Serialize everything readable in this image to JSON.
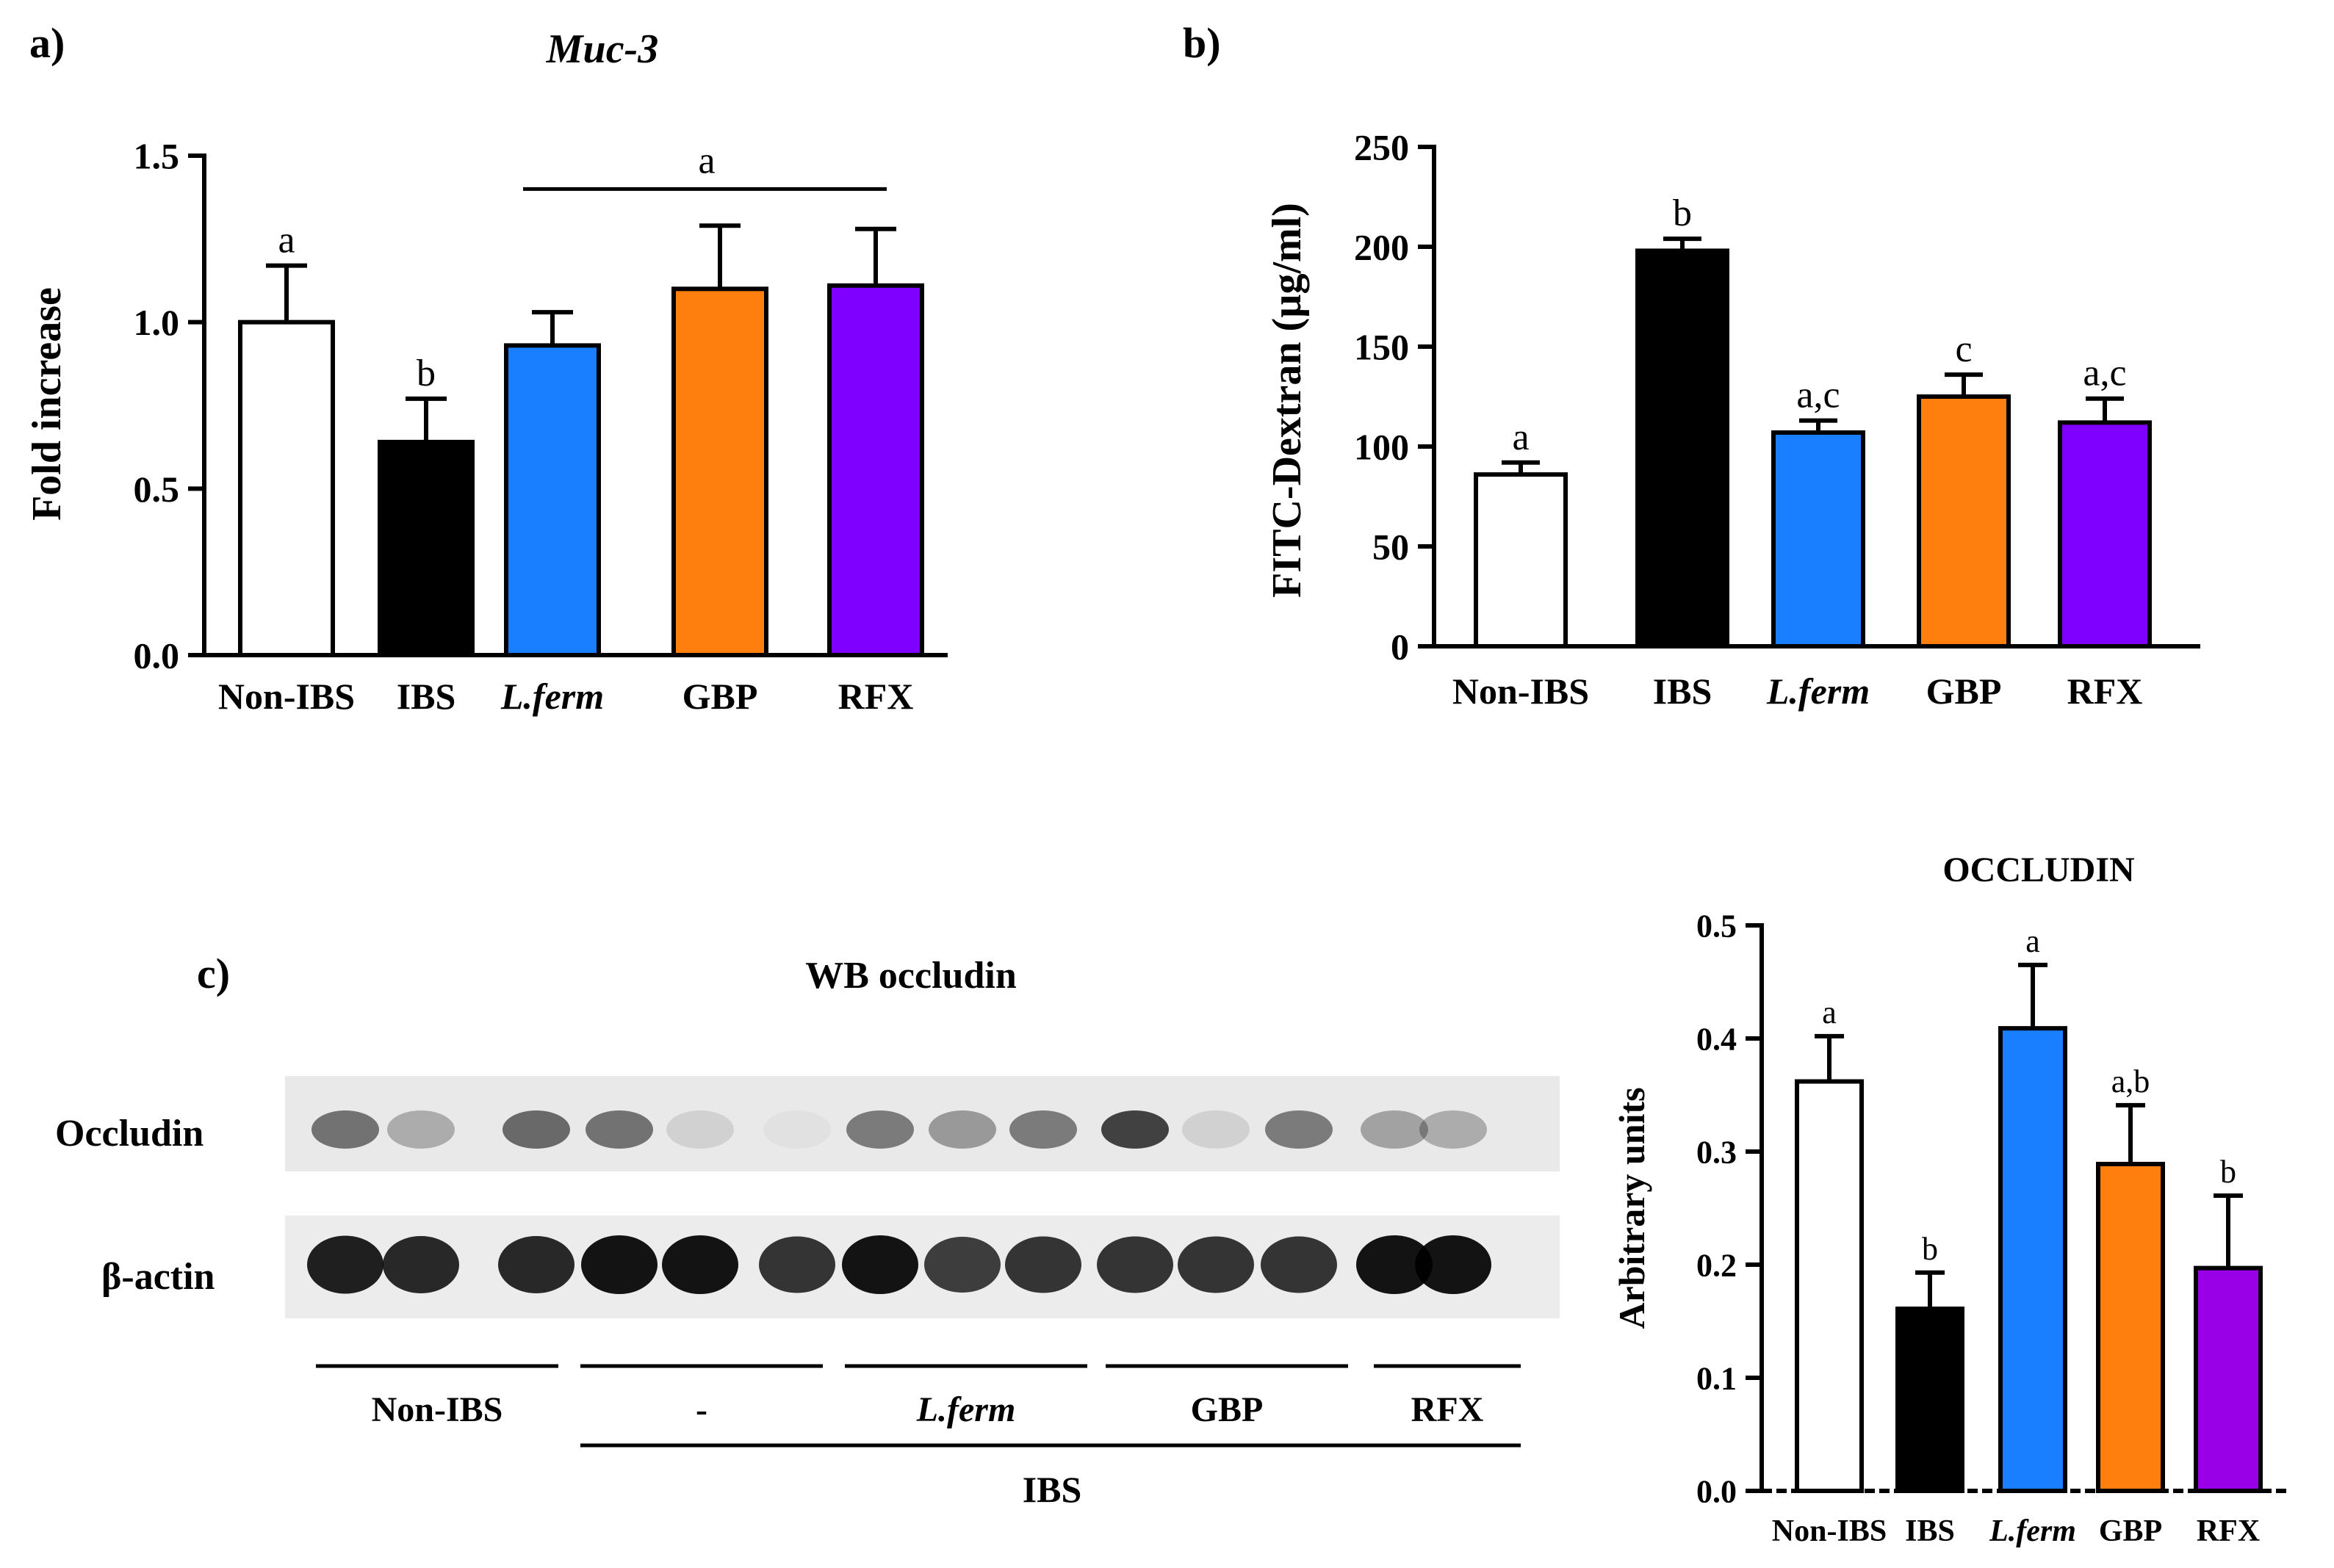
{
  "colors": {
    "non_ibs": "#ffffff",
    "ibs": "#000000",
    "lferm": "#1a7fff",
    "gbp": "#ff7f0e",
    "rfx": "#8000ff",
    "rfx_c": "#9a00e8"
  },
  "panel_labels": {
    "a": "a)",
    "b": "b)",
    "c": "c)"
  },
  "chart_data": [
    {
      "id": "a",
      "type": "bar",
      "title": "Muc-3",
      "xlabel": "",
      "ylabel": "Fold increase",
      "ylim": [
        0,
        1.5
      ],
      "yticks": [
        "0.0",
        "0.5",
        "1.0",
        "1.5"
      ],
      "categories": [
        "Non-IBS",
        "IBS",
        "L.ferm",
        "GBP",
        "RFX"
      ],
      "values": [
        1.0,
        0.64,
        0.93,
        1.1,
        1.11
      ],
      "errors": [
        0.17,
        0.13,
        0.1,
        0.19,
        0.17
      ],
      "sig_letters": [
        "a",
        "b",
        "",
        "",
        ""
      ],
      "group_bracket": {
        "from": "L.ferm",
        "to": "RFX",
        "y": 1.4,
        "letter": "a"
      }
    },
    {
      "id": "b",
      "type": "bar",
      "title": "",
      "xlabel": "",
      "ylabel": "FITC-Dextran (µg/ml)",
      "ylim": [
        0,
        250
      ],
      "yticks": [
        "0",
        "50",
        "100",
        "150",
        "200",
        "250"
      ],
      "categories": [
        "Non-IBS",
        "IBS",
        "L.ferm",
        "GBP",
        "RFX"
      ],
      "values": [
        86,
        198,
        107,
        125,
        112
      ],
      "errors": [
        6,
        6,
        6,
        11,
        12
      ],
      "sig_letters": [
        "a",
        "b",
        "a,c",
        "c",
        "a,c"
      ]
    },
    {
      "id": "c",
      "type": "bar",
      "title": "OCCLUDIN",
      "xlabel": "",
      "ylabel": "Arbitrary units",
      "ylim": [
        0,
        0.5
      ],
      "yticks": [
        "0.0",
        "0.1",
        "0.2",
        "0.3",
        "0.4",
        "0.5"
      ],
      "categories": [
        "Non-IBS",
        "IBS",
        "L.ferm",
        "GBP",
        "RFX"
      ],
      "values": [
        0.362,
        0.161,
        0.409,
        0.289,
        0.197
      ],
      "errors": [
        0.04,
        0.032,
        0.056,
        0.052,
        0.064
      ],
      "sig_letters": [
        "a",
        "b",
        "a",
        "a,b",
        "b"
      ]
    }
  ],
  "western_blot": {
    "title": "WB occludin",
    "rows": [
      "Occludin",
      "β-actin"
    ],
    "lane_count": 15,
    "occludin_intensity": [
      0.6,
      0.3,
      0.65,
      0.6,
      0.12,
      0.04,
      0.55,
      0.4,
      0.55,
      0.85,
      0.12,
      0.55,
      0.35,
      0.3,
      0
    ],
    "actin_intensity": [
      0.95,
      0.9,
      0.9,
      1.0,
      1.0,
      0.85,
      1.0,
      0.8,
      0.85,
      0.85,
      0.85,
      0.85,
      1.0,
      1.0,
      0
    ],
    "groups": [
      {
        "label": "Non-IBS",
        "italic": false
      },
      {
        "label": "-",
        "italic": false
      },
      {
        "label": "L.ferm",
        "italic": true
      },
      {
        "label": "GBP",
        "italic": false
      },
      {
        "label": "RFX",
        "italic": false
      }
    ],
    "super_label": "IBS"
  }
}
